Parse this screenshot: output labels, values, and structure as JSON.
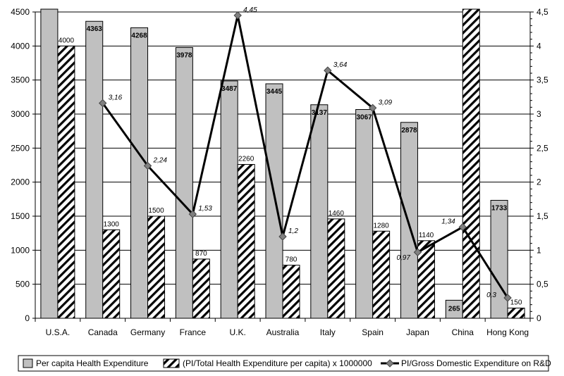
{
  "chart_data": {
    "type": "bar",
    "title": "",
    "categories": [
      "U.S.A.",
      "Canada",
      "Germany",
      "France",
      "U.K.",
      "Australia",
      "Italy",
      "Spain",
      "Japan",
      "China",
      "Hong Kong"
    ],
    "y_left": {
      "range": [
        0,
        4500
      ],
      "ticks": [
        "0",
        "500",
        "1000",
        "1500",
        "2000",
        "2500",
        "3000",
        "3500",
        "4000",
        "4500"
      ]
    },
    "y_right": {
      "range": [
        0,
        4.5
      ],
      "ticks": [
        "0",
        "0,5",
        "1",
        "1,5",
        "2",
        "2,5",
        "3",
        "3,5",
        "4",
        "4,5"
      ]
    },
    "grid": true,
    "legend_position": "bottom",
    "series": [
      {
        "name": "Per capita Health Expenditure",
        "kind": "bar",
        "axis": "left",
        "color": "#c0c0c0",
        "values": [
          null,
          4363,
          4268,
          3978,
          3487,
          3445,
          3137,
          3067,
          2878,
          265,
          1733
        ],
        "labels": [
          "",
          "4363",
          "4268",
          "3978",
          "3487",
          "3445",
          "3137",
          "3067",
          "2878",
          "265",
          "1733"
        ],
        "exceeds_axis": [
          true,
          false,
          false,
          false,
          false,
          false,
          false,
          false,
          false,
          false,
          false
        ]
      },
      {
        "name": "(PI/Total Health Expenditure per capita) x 1000000",
        "kind": "bar-hatched",
        "axis": "left",
        "color": "#000000",
        "values": [
          4000,
          1300,
          1500,
          870,
          2260,
          780,
          1460,
          1280,
          1140,
          null,
          150
        ],
        "labels": [
          "4000",
          "1300",
          "1500",
          "870",
          "2260",
          "780",
          "1460",
          "1280",
          "1140",
          "",
          "150"
        ],
        "exceeds_axis": [
          false,
          false,
          false,
          false,
          false,
          false,
          false,
          false,
          false,
          true,
          false
        ]
      },
      {
        "name": "PI/Gross Domestic Expenditure on R&D",
        "kind": "line",
        "axis": "right",
        "color": "#000000",
        "marker_color": "#808080",
        "values": [
          null,
          3.16,
          2.24,
          1.53,
          4.45,
          1.2,
          3.64,
          3.09,
          0.97,
          1.34,
          0.3
        ],
        "labels": [
          "",
          "3,16",
          "2,24",
          "1,53",
          "4,45",
          "1,2",
          "3,64",
          "3,09",
          "0,97",
          "1,34",
          "0,3"
        ]
      }
    ]
  }
}
